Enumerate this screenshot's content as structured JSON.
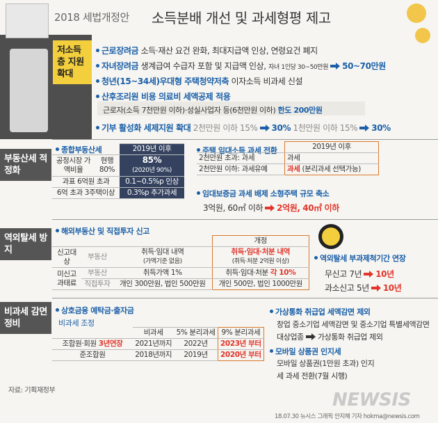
{
  "header": {
    "subtitle": "2018 세법개정안",
    "title": "소득분배 개선 및 과세형평 제고"
  },
  "low_income": {
    "label": "저소득층 지원 확대",
    "items": [
      {
        "title": "근로장려금",
        "text": "소득·재산 요건 완화, 최대지급액 인상, 연령요건 폐지"
      },
      {
        "title": "자녀장려금",
        "text": "생계급여 수급자 포함 및 지급액 인상,",
        "before": "자녀 1인당 30~50만원",
        "after": "50~70만원"
      },
      {
        "title": "청년(15~34세)우대형 주택청약저축",
        "text": "이자소득 비과세 신설"
      },
      {
        "title": "산후조리원 비용 의료비 세액공제 적용",
        "text": "근로자(소득 7천만원 이하)·성실사업자 등(6천만원 이하)",
        "highlight": "한도 200만원"
      },
      {
        "title": "기부 활성화 세제지원 확대",
        "before": "2천만원 이하 15%",
        "after": "30%",
        "before2": "1천만원 이하 15%",
        "after2": "30%"
      }
    ]
  },
  "real_estate": {
    "label": "부동산세 적정화",
    "comprehensive": {
      "heading": "종합부동산세",
      "col_header": "2019년 이후",
      "rows": [
        [
          "공정시장 가액비율",
          "현행 80%",
          "85%",
          "(2020년 90%)"
        ],
        [
          "과표 6억원 초과",
          "0.1~0.5%p 인상"
        ],
        [
          "6억 초과 3주택이상",
          "0.3%p 추가과세"
        ]
      ]
    },
    "rental": {
      "heading": "주택 임대소득 과세 전환",
      "col_header": "2019년 이후",
      "rows": [
        [
          "2천만원 초과: 과세",
          "과세"
        ],
        [
          "2천만원 이하: 과세유예",
          "과세",
          "(분리과세 선택가능)"
        ]
      ]
    },
    "deposit": {
      "heading": "임대보증금 과세 배제 소형주택 규모 축소",
      "before": "3억원, 60㎡ 이하",
      "after": "2억원, 40㎡ 이하"
    }
  },
  "offshore": {
    "label": "역외탈세 방지",
    "heading": "해외부동산 및 직접투자 신고",
    "col_header": "개정",
    "rows": [
      [
        "신고대상",
        "부동산",
        "취득·임대 내역",
        "(가액기준 없음)",
        "취득·임대·처분 내역",
        "(취득·처분 2억원 이상)"
      ],
      [
        "미신고 과태료",
        "부동산",
        "취득가액 1%",
        "취득·임대·처분",
        "각 10%"
      ],
      [
        "직접투자",
        "개인 300만원, 법인 500만원",
        "개인 500만, 법인 1000만원"
      ]
    ],
    "period": {
      "heading": "역외탈세 부과제척기간 연장",
      "rows": [
        [
          "무신고 7년",
          "10년"
        ],
        [
          "과소신고 5년",
          "10년"
        ]
      ]
    }
  },
  "non_taxation": {
    "label": "비과세 감면 정비",
    "heading": "상호금융 예탁금·출자금",
    "subheading": "비과세 조정",
    "columns": [
      "비과세",
      "5% 분리과세",
      "9% 분리과세"
    ],
    "rows": [
      [
        "조합원·회원",
        "3년연장",
        "2021년까지",
        "2022년",
        "2023년 부터"
      ],
      [
        "준조합원",
        "2018년까지",
        "2019년",
        "2020년 부터"
      ]
    ],
    "crypto": {
      "heading": "가상통화 취급업 세액감면 제외",
      "text": "창업 중소기업 세액감면 및 중소기업 특별세액감면 대상업종",
      "result": "가상통화 취급업 제외"
    },
    "mobile": {
      "heading": "모바일 상품권 인지세",
      "text": "모바일 상품권(1만원 초과) 인지세 과세 전환(7월 시행)"
    }
  },
  "footer": {
    "source": "자료: 기획재정부",
    "logo": "NEWSIS",
    "credit": "18.07.30 뉴시스 그래픽 안지혜 기자 hokma@newsis.com"
  }
}
